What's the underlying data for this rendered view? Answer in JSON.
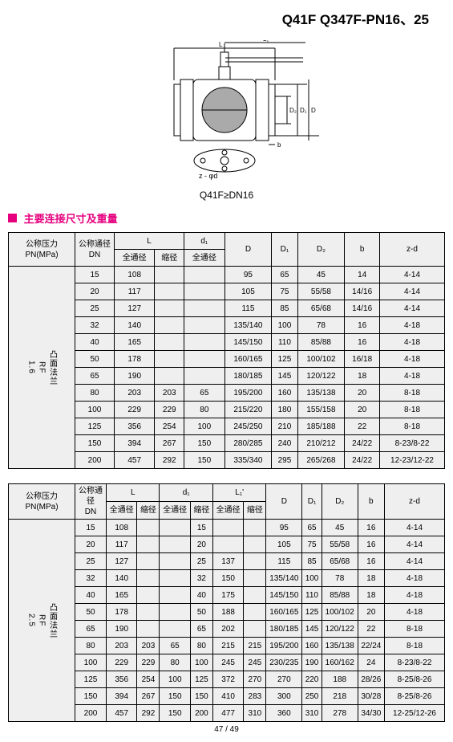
{
  "header": {
    "title": "Q41F Q347F-PN16、25"
  },
  "drawing": {
    "caption": "Q41F≥DN16"
  },
  "section": {
    "title": "主要连接尺寸及重量"
  },
  "table1": {
    "row_type_label": "凸面法兰\nRF\n1.6",
    "head": {
      "pn": "公称压力\nPN(MPa)",
      "dn": "公称通径\nDN",
      "l": "L",
      "d1": "d₁",
      "sub_full": "全通径",
      "sub_reduce": "缩径",
      "D": "D",
      "D1": "D₁",
      "D2": "D₂",
      "b": "b",
      "zd": "z-d"
    },
    "rows": [
      {
        "dn": "15",
        "l1": "108",
        "l2": "",
        "d1": "",
        "D": "95",
        "D1": "65",
        "D2": "45",
        "b": "14",
        "zd": "4-14"
      },
      {
        "dn": "20",
        "l1": "117",
        "l2": "",
        "d1": "",
        "D": "105",
        "D1": "75",
        "D2": "55/58",
        "b": "14/16",
        "zd": "4-14"
      },
      {
        "dn": "25",
        "l1": "127",
        "l2": "",
        "d1": "",
        "D": "115",
        "D1": "85",
        "D2": "65/68",
        "b": "14/16",
        "zd": "4-14"
      },
      {
        "dn": "32",
        "l1": "140",
        "l2": "",
        "d1": "",
        "D": "135/140",
        "D1": "100",
        "D2": "78",
        "b": "16",
        "zd": "4-18"
      },
      {
        "dn": "40",
        "l1": "165",
        "l2": "",
        "d1": "",
        "D": "145/150",
        "D1": "110",
        "D2": "85/88",
        "b": "16",
        "zd": "4-18"
      },
      {
        "dn": "50",
        "l1": "178",
        "l2": "",
        "d1": "",
        "D": "160/165",
        "D1": "125",
        "D2": "100/102",
        "b": "16/18",
        "zd": "4-18"
      },
      {
        "dn": "65",
        "l1": "190",
        "l2": "",
        "d1": "",
        "D": "180/185",
        "D1": "145",
        "D2": "120/122",
        "b": "18",
        "zd": "4-18"
      },
      {
        "dn": "80",
        "l1": "203",
        "l2": "203",
        "d1": "65",
        "D": "195/200",
        "D1": "160",
        "D2": "135/138",
        "b": "20",
        "zd": "8-18"
      },
      {
        "dn": "100",
        "l1": "229",
        "l2": "229",
        "d1": "80",
        "D": "215/220",
        "D1": "180",
        "D2": "155/158",
        "b": "20",
        "zd": "8-18"
      },
      {
        "dn": "125",
        "l1": "356",
        "l2": "254",
        "d1": "100",
        "D": "245/250",
        "D1": "210",
        "D2": "185/188",
        "b": "22",
        "zd": "8-18"
      },
      {
        "dn": "150",
        "l1": "394",
        "l2": "267",
        "d1": "150",
        "D": "280/285",
        "D1": "240",
        "D2": "210/212",
        "b": "24/22",
        "zd": "8-23/8-22"
      },
      {
        "dn": "200",
        "l1": "457",
        "l2": "292",
        "d1": "150",
        "D": "335/340",
        "D1": "295",
        "D2": "265/268",
        "b": "24/22",
        "zd": "12-23/12-22"
      }
    ]
  },
  "table2": {
    "row_type_label": "凸面法兰\nRF\n2.5",
    "head": {
      "pn": "公称压力\nPN(MPa)",
      "dn": "公称通径\nDN",
      "l": "L",
      "d1": "d₁",
      "l1p": "L₁'",
      "sub_full": "全通径",
      "sub_reduce": "缩径",
      "D": "D",
      "D1": "D₁",
      "D2": "D₂",
      "b": "b",
      "zd": "z-d"
    },
    "rows": [
      {
        "dn": "15",
        "l1": "108",
        "l2": "",
        "d1a": "",
        "d1b": "15",
        "l1p1": "",
        "l1p2": "",
        "D": "95",
        "D1": "65",
        "D2": "45",
        "b": "16",
        "zd": "4-14"
      },
      {
        "dn": "20",
        "l1": "117",
        "l2": "",
        "d1a": "",
        "d1b": "20",
        "l1p1": "",
        "l1p2": "",
        "D": "105",
        "D1": "75",
        "D2": "55/58",
        "b": "16",
        "zd": "4-14"
      },
      {
        "dn": "25",
        "l1": "127",
        "l2": "",
        "d1a": "",
        "d1b": "25",
        "l1p1": "137",
        "l1p2": "",
        "D": "115",
        "D1": "85",
        "D2": "65/68",
        "b": "16",
        "zd": "4-14"
      },
      {
        "dn": "32",
        "l1": "140",
        "l2": "",
        "d1a": "",
        "d1b": "32",
        "l1p1": "150",
        "l1p2": "",
        "D": "135/140",
        "D1": "100",
        "D2": "78",
        "b": "18",
        "zd": "4-18"
      },
      {
        "dn": "40",
        "l1": "165",
        "l2": "",
        "d1a": "",
        "d1b": "40",
        "l1p1": "175",
        "l1p2": "",
        "D": "145/150",
        "D1": "110",
        "D2": "85/88",
        "b": "18",
        "zd": "4-18"
      },
      {
        "dn": "50",
        "l1": "178",
        "l2": "",
        "d1a": "",
        "d1b": "50",
        "l1p1": "188",
        "l1p2": "",
        "D": "160/165",
        "D1": "125",
        "D2": "100/102",
        "b": "20",
        "zd": "4-18"
      },
      {
        "dn": "65",
        "l1": "190",
        "l2": "",
        "d1a": "",
        "d1b": "65",
        "l1p1": "202",
        "l1p2": "",
        "D": "180/185",
        "D1": "145",
        "D2": "120/122",
        "b": "22",
        "zd": "8-18"
      },
      {
        "dn": "80",
        "l1": "203",
        "l2": "203",
        "d1a": "65",
        "d1b": "80",
        "l1p1": "215",
        "l1p2": "215",
        "D": "195/200",
        "D1": "160",
        "D2": "135/138",
        "b": "22/24",
        "zd": "8-18"
      },
      {
        "dn": "100",
        "l1": "229",
        "l2": "229",
        "d1a": "80",
        "d1b": "100",
        "l1p1": "245",
        "l1p2": "245",
        "D": "230/235",
        "D1": "190",
        "D2": "160/162",
        "b": "24",
        "zd": "8-23/8-22"
      },
      {
        "dn": "125",
        "l1": "356",
        "l2": "254",
        "d1a": "100",
        "d1b": "125",
        "l1p1": "372",
        "l1p2": "270",
        "D": "270",
        "D1": "220",
        "D2": "188",
        "b": "28/26",
        "zd": "8-25/8-26"
      },
      {
        "dn": "150",
        "l1": "394",
        "l2": "267",
        "d1a": "150",
        "d1b": "150",
        "l1p1": "410",
        "l1p2": "283",
        "D": "300",
        "D1": "250",
        "D2": "218",
        "b": "30/28",
        "zd": "8-25/8-26"
      },
      {
        "dn": "200",
        "l1": "457",
        "l2": "292",
        "d1a": "150",
        "d1b": "200",
        "l1p1": "477",
        "l1p2": "310",
        "D": "360",
        "D1": "310",
        "D2": "278",
        "b": "34/30",
        "zd": "12-25/12-26"
      }
    ]
  },
  "foot": {
    "pager": "47 / 49"
  }
}
